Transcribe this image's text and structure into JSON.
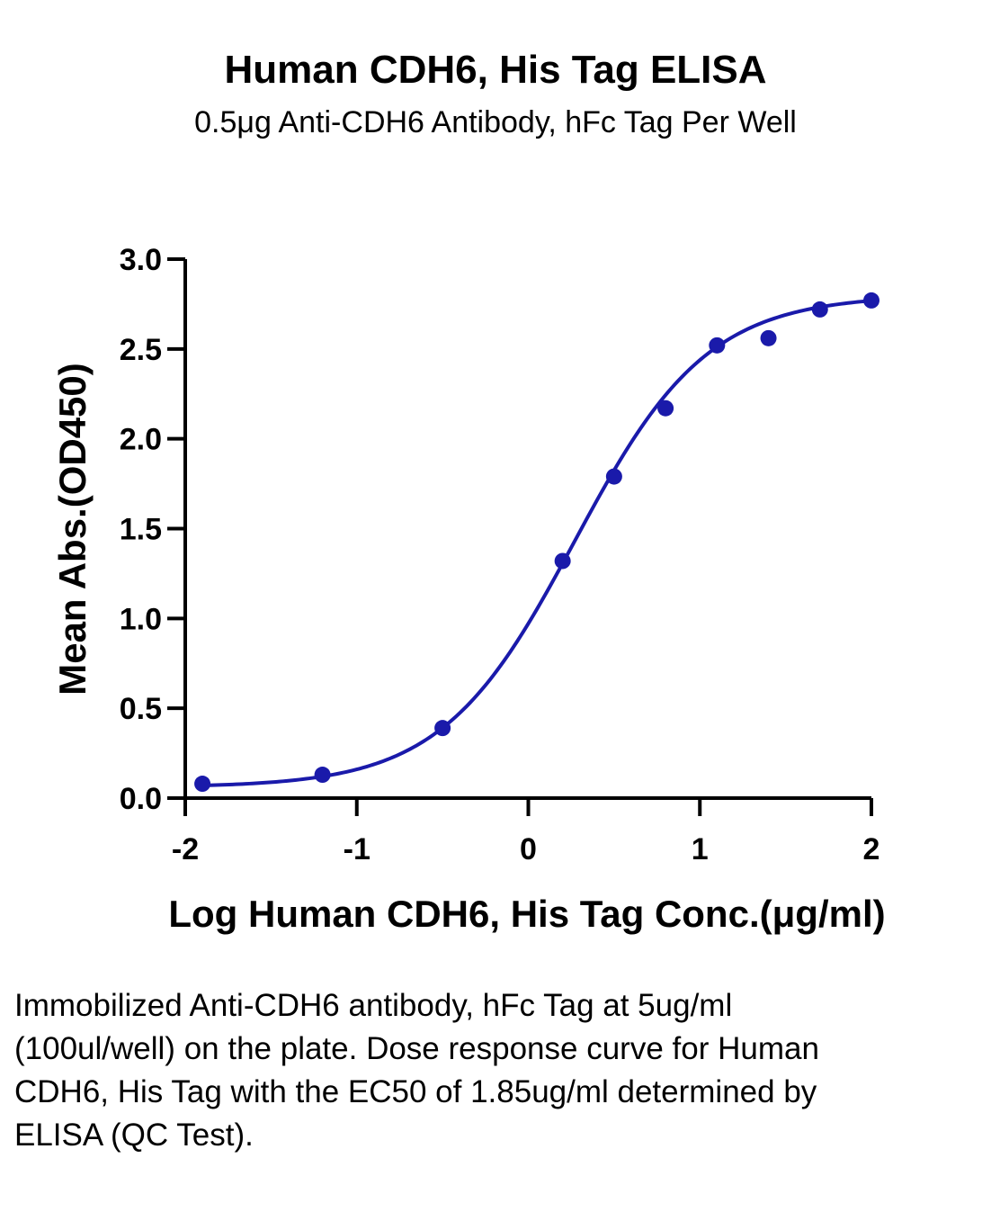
{
  "chart_data": {
    "type": "scatter",
    "title": "Human CDH6, His Tag ELISA",
    "subtitle": "0.5μg Anti-CDH6 Antibody, hFc Tag Per Well",
    "xlabel": "Log Human CDH6, His Tag Conc.(μg/ml)",
    "ylabel": "Mean Abs.(OD450)",
    "xlim": [
      -2,
      2
    ],
    "ylim": [
      0,
      3
    ],
    "x_ticks": [
      -2,
      -1,
      0,
      1,
      2
    ],
    "x_tick_labels": [
      "-2",
      "-1",
      "0",
      "1",
      "2"
    ],
    "y_ticks": [
      0,
      0.5,
      1,
      1.5,
      2,
      2.5,
      3
    ],
    "y_tick_labels": [
      "0.0",
      "0.5",
      "1.0",
      "1.5",
      "2.0",
      "2.5",
      "3.0"
    ],
    "grid": false,
    "series": [
      {
        "color": "#1a1aaa",
        "marker": "circle",
        "x": [
          -1.9,
          -1.2,
          -0.5,
          0.2,
          0.5,
          0.8,
          1.1,
          1.4,
          1.7,
          2.0
        ],
        "y": [
          0.08,
          0.13,
          0.39,
          1.32,
          1.79,
          2.17,
          2.52,
          2.56,
          2.72,
          2.77
        ],
        "fit": {
          "model": "4PL",
          "x_range": [
            -1.9,
            2.0
          ],
          "bottom": 0.06,
          "top": 2.8,
          "log_ec50": 0.27,
          "hill_slope": 1.12
        }
      }
    ]
  },
  "caption": "Immobilized Anti-CDH6 antibody, hFc Tag at 5ug/ml (100ul/well) on the plate. Dose response curve for Human CDH6, His Tag with the EC50 of 1.85ug/ml determined by ELISA (QC Test)."
}
